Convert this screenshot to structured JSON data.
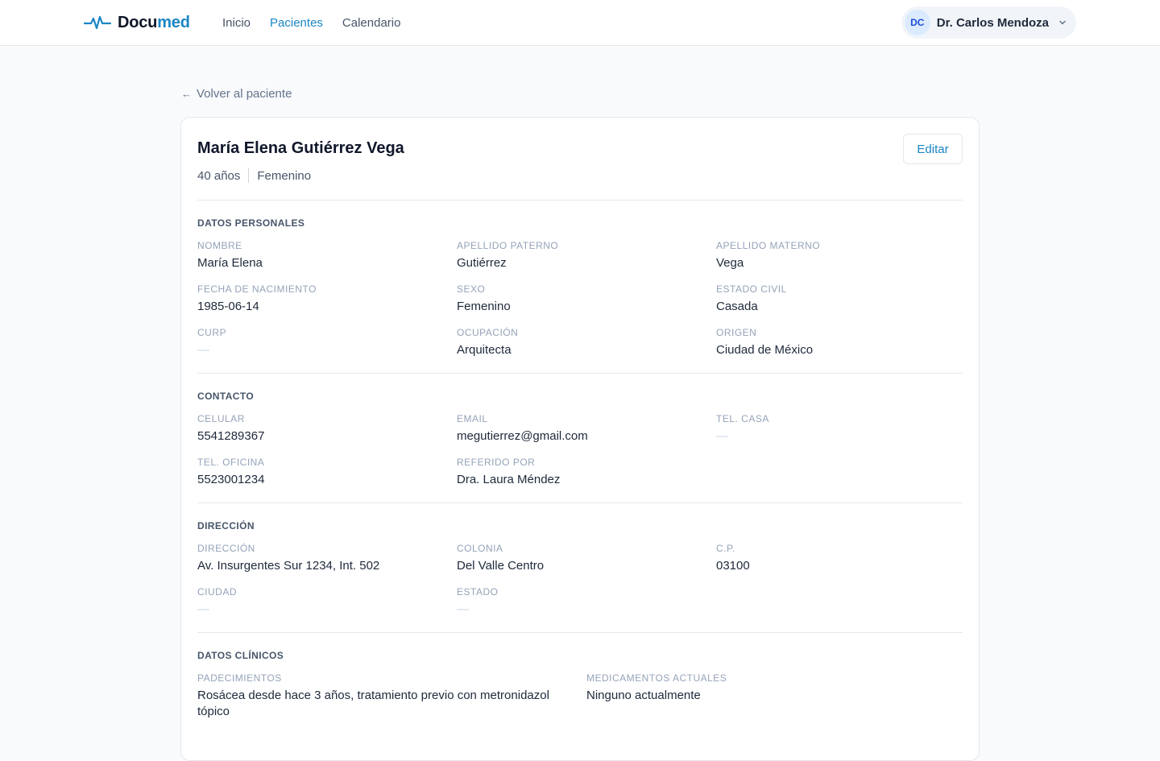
{
  "brand": {
    "name_prefix": "Docu",
    "name_suffix": "med",
    "accent_color": "#1a86c5"
  },
  "nav": {
    "items": [
      {
        "label": "Inicio",
        "active": false
      },
      {
        "label": "Pacientes",
        "active": true
      },
      {
        "label": "Calendario",
        "active": false
      }
    ]
  },
  "user": {
    "initials": "DC",
    "name": "Dr. Carlos Mendoza"
  },
  "back_link": {
    "arrow": "←",
    "label": "Volver al paciente"
  },
  "patient": {
    "name": "María Elena Gutiérrez Vega",
    "age": "40 años",
    "sex": "Femenino",
    "edit_label": "Editar"
  },
  "sections": {
    "personal": {
      "title": "DATOS PERSONALES",
      "fields": [
        {
          "label": "Nombre",
          "value": "María Elena"
        },
        {
          "label": "Apellido paterno",
          "value": "Gutiérrez"
        },
        {
          "label": "Apellido materno",
          "value": "Vega"
        },
        {
          "label": "Fecha de nacimiento",
          "value": "1985-06-14"
        },
        {
          "label": "Sexo",
          "value": "Femenino"
        },
        {
          "label": "Estado civil",
          "value": "Casada"
        },
        {
          "label": "CURP",
          "value": "—"
        },
        {
          "label": "Ocupación",
          "value": "Arquitecta"
        },
        {
          "label": "Origen",
          "value": "Ciudad de México"
        }
      ]
    },
    "contact": {
      "title": "CONTACTO",
      "fields": [
        {
          "label": "Celular",
          "value": "5541289367"
        },
        {
          "label": "Email",
          "value": "megutierrez@gmail.com"
        },
        {
          "label": "Tel. casa",
          "value": "—"
        },
        {
          "label": "Tel. oficina",
          "value": "5523001234"
        },
        {
          "label": "Referido por",
          "value": "Dra. Laura Méndez"
        }
      ]
    },
    "address": {
      "title": "DIRECCIÓN",
      "fields": [
        {
          "label": "Dirección",
          "value": "Av. Insurgentes Sur 1234, Int. 502"
        },
        {
          "label": "Colonia",
          "value": "Del Valle Centro"
        },
        {
          "label": "C.P.",
          "value": "03100"
        },
        {
          "label": "Ciudad",
          "value": "—"
        },
        {
          "label": "Estado",
          "value": "—"
        }
      ]
    },
    "clinical": {
      "title": "DATOS CLÍNICOS",
      "fields": [
        {
          "label": "Padecimientos",
          "value": "Rosácea desde hace 3 años, tratamiento previo con metronidazol tópico"
        },
        {
          "label": "Medicamentos actuales",
          "value": "Ninguno actualmente"
        }
      ]
    }
  }
}
